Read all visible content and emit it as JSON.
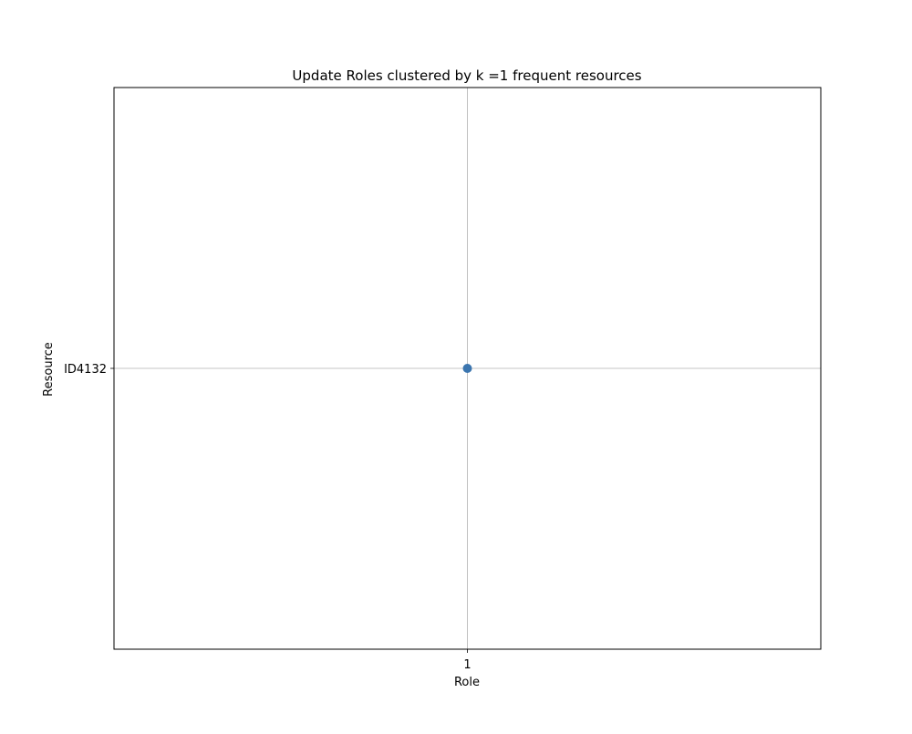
{
  "chart_data": {
    "type": "scatter",
    "title": "Update Roles clustered by k =1 frequent resources",
    "xlabel": "Role",
    "ylabel": "Resource",
    "x_categories": [
      "1"
    ],
    "y_categories": [
      "ID4132"
    ],
    "points": [
      {
        "x": "1",
        "y": "ID4132"
      }
    ],
    "grid": true,
    "marker_color": "#3b75af"
  }
}
